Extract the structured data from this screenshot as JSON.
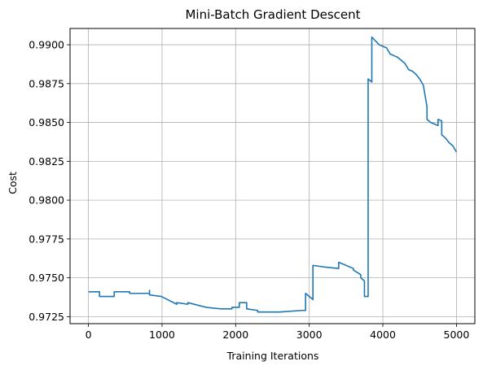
{
  "chart_data": {
    "type": "line",
    "title": "Mini-Batch Gradient Descent",
    "xlabel": "Training Iterations",
    "ylabel": "Cost",
    "xlim": [
      -250,
      5250
    ],
    "ylim": [
      0.97205,
      0.99105
    ],
    "grid": true,
    "x_ticks": [
      0,
      1000,
      2000,
      3000,
      4000,
      5000
    ],
    "x_tick_labels": [
      "0",
      "1000",
      "2000",
      "3000",
      "4000",
      "5000"
    ],
    "y_ticks": [
      0.9725,
      0.975,
      0.9775,
      0.98,
      0.9825,
      0.985,
      0.9875,
      0.99
    ],
    "y_tick_labels": [
      "0.9725",
      "0.9750",
      "0.9775",
      "0.9800",
      "0.9825",
      "0.9850",
      "0.9875",
      "0.9900"
    ],
    "line_color": "#1f77b4",
    "series": [
      {
        "x": [
          0,
          150,
          150,
          350,
          350,
          560,
          560,
          830,
          830,
          830,
          990,
          1200,
          1200,
          1350,
          1350,
          1600,
          1800,
          1950,
          1950,
          2050,
          2050,
          2150,
          2150,
          2300,
          2300,
          2400,
          2600,
          2900,
          2950,
          2950,
          3050,
          3050,
          3050,
          3200,
          3400,
          3400,
          3600,
          3600,
          3700,
          3700,
          3750,
          3750,
          3800,
          3800,
          3800,
          3850,
          3850,
          3850,
          3950,
          4050,
          4100,
          4150,
          4200,
          4250,
          4300,
          4350,
          4400,
          4450,
          4500,
          4550,
          4600,
          4600,
          4650,
          4750,
          4750,
          4800,
          4800,
          4850,
          4900,
          4950,
          5000
        ],
        "y": [
          0.9741,
          0.9741,
          0.9738,
          0.9738,
          0.9741,
          0.9741,
          0.974,
          0.974,
          0.9742,
          0.9739,
          0.9738,
          0.9733,
          0.9734,
          0.9733,
          0.9734,
          0.9731,
          0.973,
          0.973,
          0.9731,
          0.9731,
          0.9734,
          0.9734,
          0.973,
          0.9729,
          0.9728,
          0.9728,
          0.9728,
          0.9729,
          0.9729,
          0.974,
          0.9736,
          0.9736,
          0.9758,
          0.9757,
          0.9756,
          0.976,
          0.9756,
          0.9755,
          0.9752,
          0.975,
          0.9748,
          0.9738,
          0.9738,
          0.9878,
          0.9878,
          0.9876,
          0.9876,
          0.9905,
          0.99,
          0.9898,
          0.9894,
          0.9893,
          0.9892,
          0.989,
          0.9888,
          0.9884,
          0.9883,
          0.9881,
          0.9878,
          0.9874,
          0.986,
          0.9852,
          0.985,
          0.9848,
          0.9852,
          0.9851,
          0.9842,
          0.984,
          0.9837,
          0.9835,
          0.9831
        ]
      }
    ]
  }
}
